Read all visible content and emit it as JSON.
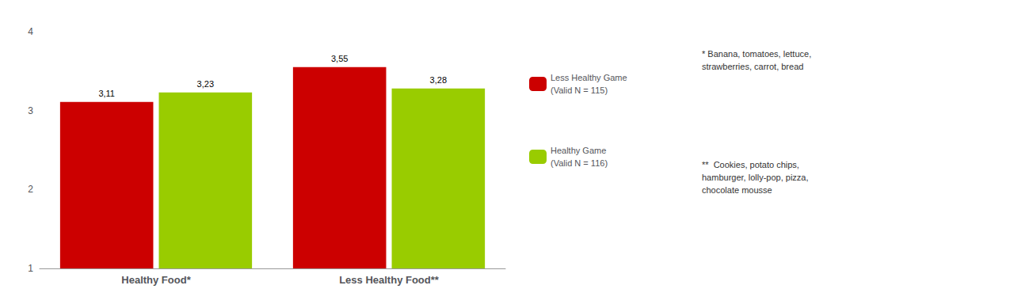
{
  "chart_data": {
    "type": "bar",
    "categories": [
      "Healthy Food*",
      "Less Healthy Food**"
    ],
    "series": [
      {
        "name": "Less Healthy Game\n(Valid N = 115)",
        "color": "#CC0000",
        "values": [
          3.11,
          3.55
        ],
        "value_labels": [
          "3,11",
          "3,55"
        ]
      },
      {
        "name": "Healthy Game\n(Valid N = 116)",
        "color": "#99CC00",
        "values": [
          3.23,
          3.28
        ],
        "value_labels": [
          "3,23",
          "3,28"
        ]
      }
    ],
    "ylim": [
      1,
      4
    ],
    "yticks": [
      1,
      2,
      3,
      4
    ],
    "grid": false,
    "data_labels": true,
    "legend": "right",
    "annotations": [
      "* Banana, tomatoes, lettuce,\nstrawberries, carrot, bread",
      "**  Cookies, potato chips,\nhamburger, lolly-pop, pizza,\nchocolate mousse"
    ]
  }
}
